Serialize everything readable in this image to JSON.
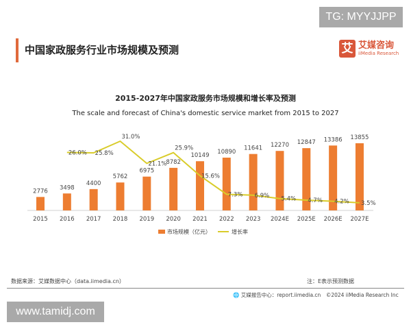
{
  "watermark_top": "TG: MYYJJPP",
  "watermark_bottom": "www.tamidj.com",
  "header": {
    "title": "中国家政服务行业市场规模及预测",
    "logo_cn": "艾媒咨询",
    "logo_en": "iiMedia Research",
    "logo_mark": "艾"
  },
  "footer": {
    "source": "数据来源：艾媒数据中心（data.iimedia.cn）",
    "note": "注：E表示预测数据",
    "report": "艾媒报告中心：report.iimedia.cn　©2024  iiMedia Research  Inc"
  },
  "chart_data": {
    "type": "bar+line",
    "title": "2015-2027年中国家政服务市场规模和增长率及预测",
    "subtitle": "The scale and forecast of China's domestic service market from 2015 to 2027",
    "categories": [
      "2015",
      "2016",
      "2017",
      "2018",
      "2019",
      "2020",
      "2021",
      "2022",
      "2023",
      "2024E",
      "2025E",
      "2026E",
      "2027E"
    ],
    "series": [
      {
        "name": "市场规模（亿元）",
        "type": "bar",
        "color": "#ed7d31",
        "values": [
          2776,
          3498,
          4400,
          5762,
          6975,
          8782,
          10149,
          10890,
          11641,
          12270,
          12847,
          13386,
          13855
        ],
        "labels": [
          "2776",
          "3498",
          "4400",
          "5762",
          "6975",
          "8782",
          "10149",
          "10890",
          "11641",
          "12270",
          "12847",
          "13386",
          "13855"
        ]
      },
      {
        "name": "增长率",
        "type": "line",
        "color": "#d9cc2a",
        "values": [
          null,
          26.0,
          25.8,
          31.0,
          21.1,
          25.9,
          15.6,
          7.3,
          6.9,
          5.4,
          4.7,
          4.2,
          3.5
        ],
        "labels": [
          "",
          "26.0%",
          "25.8%",
          "31.0%",
          "21.1%",
          "25.9%",
          "15.6%",
          "7.3%",
          "6.9%",
          "5.4%",
          "4.7%",
          "4.2%",
          "3.5%"
        ]
      }
    ],
    "legend": "bottom",
    "grid": false
  }
}
